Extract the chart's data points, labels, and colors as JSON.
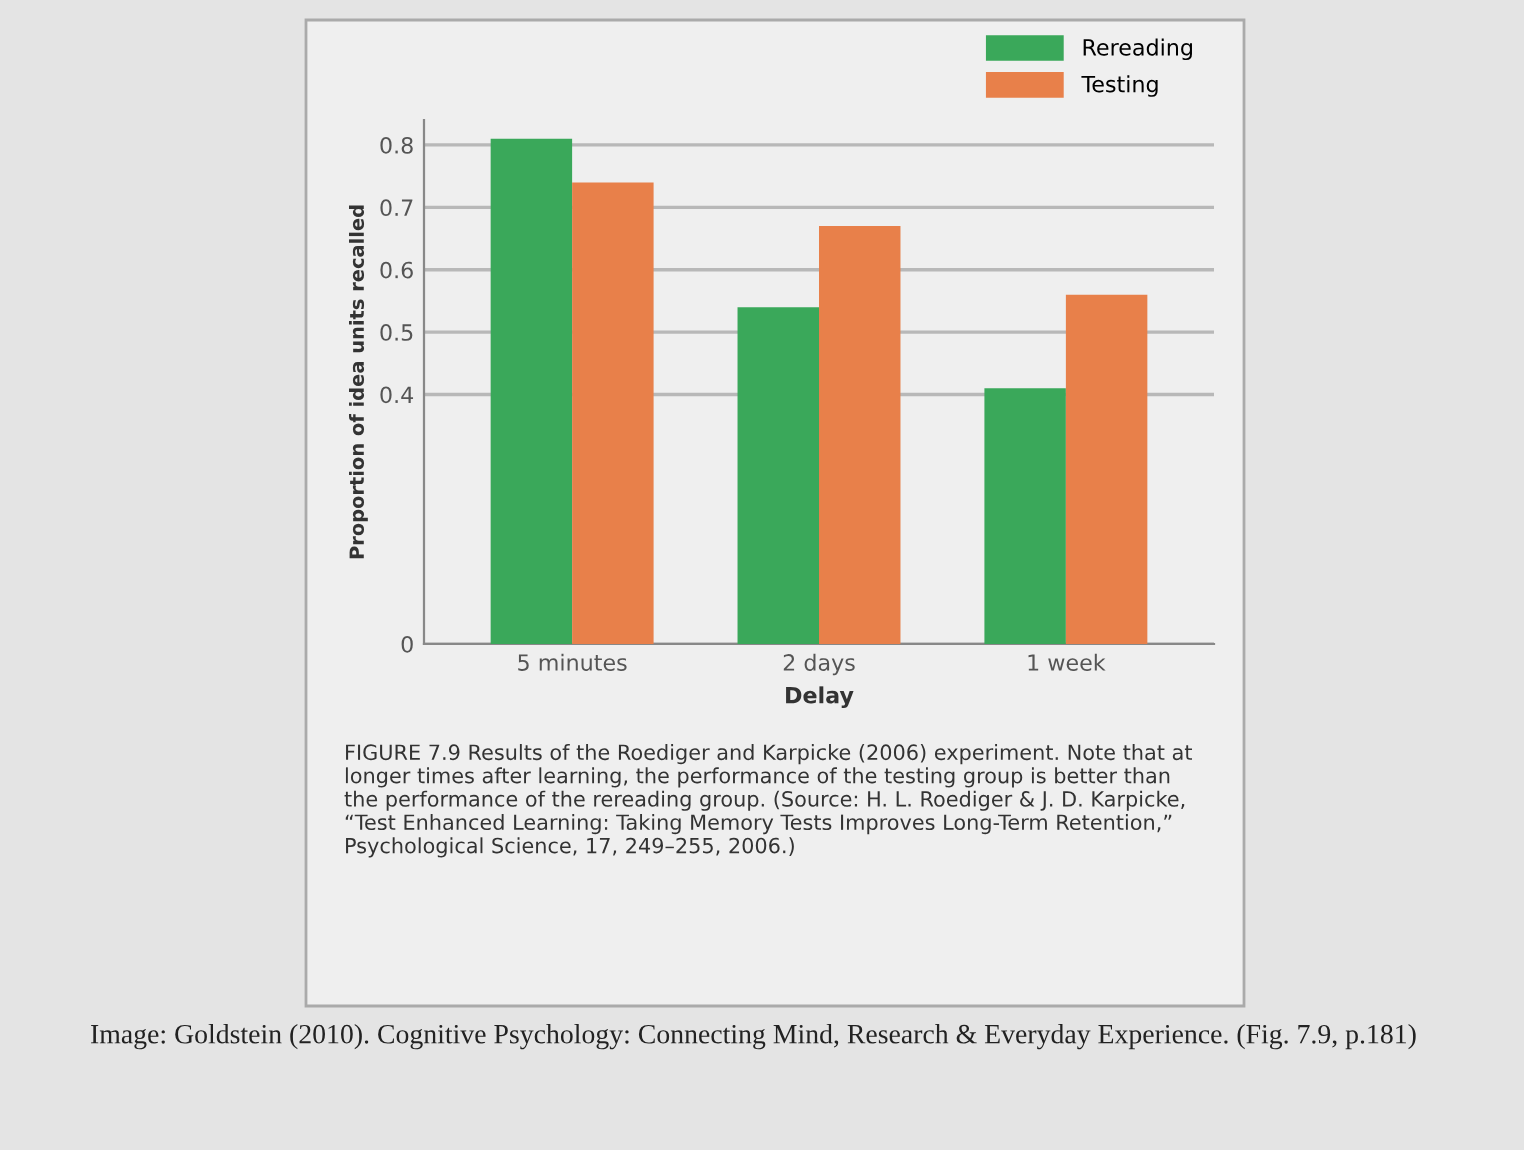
{
  "chart_data": {
    "type": "bar",
    "xlabel": "Delay",
    "ylabel": "Proportion of idea units recalled",
    "categories": [
      "5 minutes",
      "2 days",
      "1 week"
    ],
    "series": [
      {
        "name": "Rereading",
        "color": "#3aa85a",
        "values": [
          0.81,
          0.54,
          0.41
        ]
      },
      {
        "name": "Testing",
        "color": "#e8804a",
        "values": [
          0.74,
          0.67,
          0.56
        ]
      }
    ],
    "ylim": [
      0,
      0.84
    ],
    "yticks": [
      0,
      0.4,
      0.5,
      0.6,
      0.7,
      0.8
    ],
    "grid": "y",
    "legend": "top right",
    "annotations": [
      "FIGURE 7.9 Results of the Roediger and Karpicke (2006) experiment. Note that at longer times after learning, the performance of the testing group is better than the performance of the rereading group. (Source: H. L. Roediger & J. D. Karpicke, “Test Enhanced Learning: Taking Memory Tests Improves Long-Term Retention,” Psychological Science, 17, 249–255, 2006.)",
      "Image: Goldstein (2010). Cognitive Psychology: Connecting Mind, Research & Everyday Experience. (Fig. 7.9, p.181)"
    ]
  }
}
